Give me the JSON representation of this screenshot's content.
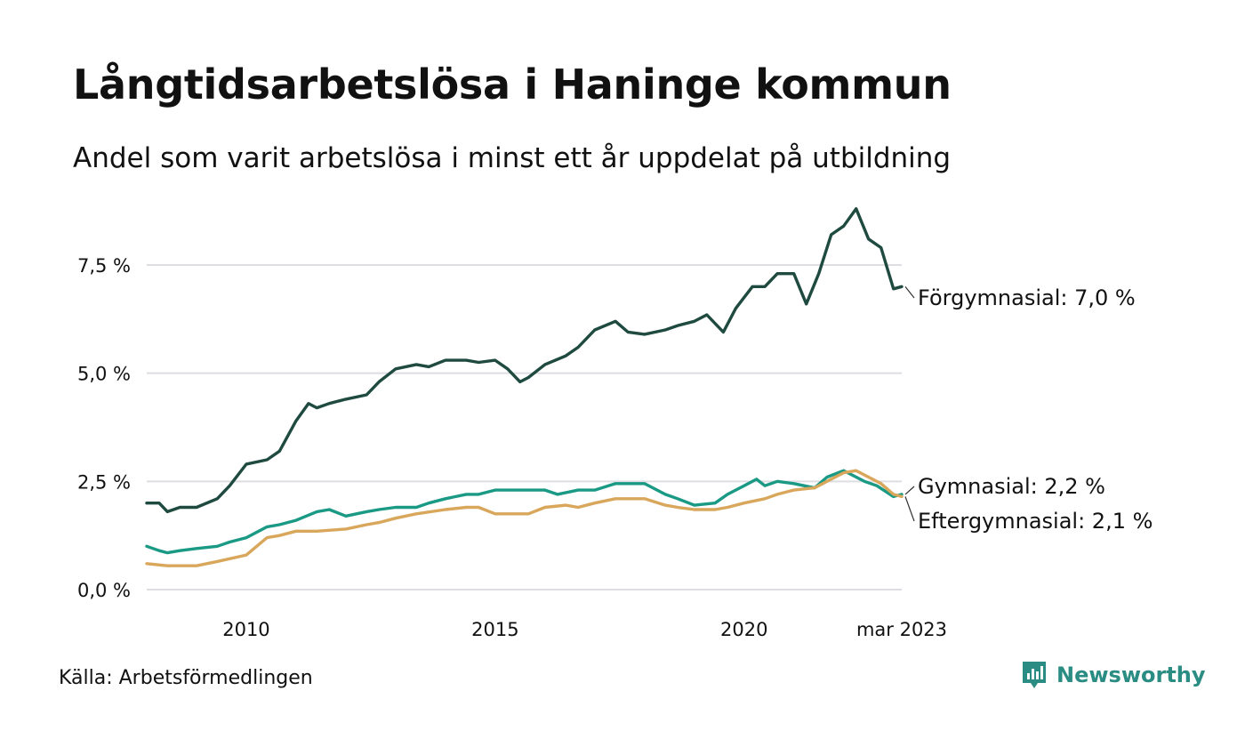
{
  "header": {
    "title": "Långtidsarbetslösa i Haninge kommun",
    "subtitle": "Andel som varit arbetslösa i minst ett år uppdelat på utbildning"
  },
  "footer": {
    "source": "Källa: Arbetsförmedlingen",
    "brand": "Newsworthy",
    "brand_icon": "bar-chart-logo-icon"
  },
  "colors": {
    "forgymnasial": "#1f4a40",
    "gymnasial": "#1a9985",
    "eftergymnasial": "#d9a75c",
    "grid": "#dddde2",
    "text": "#111111"
  },
  "chart_data": {
    "type": "line",
    "title": "Långtidsarbetslösa i Haninge kommun",
    "subtitle": "Andel som varit arbetslösa i minst ett år uppdelat på utbildning",
    "ylim": [
      0,
      9.0
    ],
    "yticks": [
      0,
      2.5,
      5.0,
      7.5
    ],
    "ytick_labels": [
      "0,0 %",
      "2,5 %",
      "5,0 %",
      "7,5 %"
    ],
    "xlim": [
      "2008-01",
      "2023-03"
    ],
    "xticks": [
      "2010-01",
      "2015-01",
      "2020-01",
      "2023-03"
    ],
    "xtick_labels": [
      "2010",
      "2015",
      "2020",
      "mar 2023"
    ],
    "grid": true,
    "legend": "direct labels at line ends",
    "end_labels": [
      "Förgymnasial: 7,0 %",
      "Gymnasial: 2,2 %",
      "Eftergymnasial: 2,1 %"
    ],
    "series": [
      {
        "name": "Förgymnasial",
        "color": "#1f4a40",
        "points": [
          [
            "2008-01",
            2.0
          ],
          [
            "2008-04",
            2.0
          ],
          [
            "2008-06",
            1.8
          ],
          [
            "2008-09",
            1.9
          ],
          [
            "2009-01",
            1.9
          ],
          [
            "2009-06",
            2.1
          ],
          [
            "2009-09",
            2.4
          ],
          [
            "2010-01",
            2.9
          ],
          [
            "2010-06",
            3.0
          ],
          [
            "2010-09",
            3.2
          ],
          [
            "2011-01",
            3.9
          ],
          [
            "2011-04",
            4.3
          ],
          [
            "2011-06",
            4.2
          ],
          [
            "2011-09",
            4.3
          ],
          [
            "2012-01",
            4.4
          ],
          [
            "2012-06",
            4.5
          ],
          [
            "2012-09",
            4.8
          ],
          [
            "2013-01",
            5.1
          ],
          [
            "2013-06",
            5.2
          ],
          [
            "2013-09",
            5.15
          ],
          [
            "2014-01",
            5.3
          ],
          [
            "2014-06",
            5.3
          ],
          [
            "2014-09",
            5.25
          ],
          [
            "2015-01",
            5.3
          ],
          [
            "2015-04",
            5.1
          ],
          [
            "2015-07",
            4.8
          ],
          [
            "2015-09",
            4.9
          ],
          [
            "2016-01",
            5.2
          ],
          [
            "2016-06",
            5.4
          ],
          [
            "2016-09",
            5.6
          ],
          [
            "2017-01",
            6.0
          ],
          [
            "2017-06",
            6.2
          ],
          [
            "2017-09",
            5.95
          ],
          [
            "2018-01",
            5.9
          ],
          [
            "2018-06",
            6.0
          ],
          [
            "2018-09",
            6.1
          ],
          [
            "2019-01",
            6.2
          ],
          [
            "2019-04",
            6.35
          ],
          [
            "2019-08",
            5.95
          ],
          [
            "2019-11",
            6.5
          ],
          [
            "2020-03",
            7.0
          ],
          [
            "2020-06",
            7.0
          ],
          [
            "2020-09",
            7.3
          ],
          [
            "2021-01",
            7.3
          ],
          [
            "2021-04",
            6.6
          ],
          [
            "2021-07",
            7.3
          ],
          [
            "2021-10",
            8.2
          ],
          [
            "2022-01",
            8.4
          ],
          [
            "2022-04",
            8.8
          ],
          [
            "2022-07",
            8.1
          ],
          [
            "2022-10",
            7.9
          ],
          [
            "2023-01",
            6.95
          ],
          [
            "2023-03",
            7.0
          ]
        ]
      },
      {
        "name": "Gymnasial",
        "color": "#1a9985",
        "points": [
          [
            "2008-01",
            1.0
          ],
          [
            "2008-04",
            0.9
          ],
          [
            "2008-06",
            0.85
          ],
          [
            "2008-09",
            0.9
          ],
          [
            "2009-01",
            0.95
          ],
          [
            "2009-06",
            1.0
          ],
          [
            "2009-09",
            1.1
          ],
          [
            "2010-01",
            1.2
          ],
          [
            "2010-06",
            1.45
          ],
          [
            "2010-09",
            1.5
          ],
          [
            "2011-01",
            1.6
          ],
          [
            "2011-06",
            1.8
          ],
          [
            "2011-09",
            1.85
          ],
          [
            "2012-01",
            1.7
          ],
          [
            "2012-06",
            1.8
          ],
          [
            "2012-09",
            1.85
          ],
          [
            "2013-01",
            1.9
          ],
          [
            "2013-06",
            1.9
          ],
          [
            "2013-09",
            2.0
          ],
          [
            "2014-01",
            2.1
          ],
          [
            "2014-06",
            2.2
          ],
          [
            "2014-09",
            2.2
          ],
          [
            "2015-01",
            2.3
          ],
          [
            "2015-06",
            2.3
          ],
          [
            "2015-09",
            2.3
          ],
          [
            "2016-01",
            2.3
          ],
          [
            "2016-04",
            2.2
          ],
          [
            "2016-09",
            2.3
          ],
          [
            "2017-01",
            2.3
          ],
          [
            "2017-06",
            2.45
          ],
          [
            "2017-09",
            2.45
          ],
          [
            "2018-01",
            2.45
          ],
          [
            "2018-06",
            2.2
          ],
          [
            "2018-09",
            2.1
          ],
          [
            "2019-01",
            1.95
          ],
          [
            "2019-06",
            2.0
          ],
          [
            "2019-09",
            2.2
          ],
          [
            "2020-01",
            2.4
          ],
          [
            "2020-04",
            2.55
          ],
          [
            "2020-06",
            2.4
          ],
          [
            "2020-09",
            2.5
          ],
          [
            "2021-01",
            2.45
          ],
          [
            "2021-06",
            2.35
          ],
          [
            "2021-09",
            2.6
          ],
          [
            "2022-01",
            2.75
          ],
          [
            "2022-06",
            2.5
          ],
          [
            "2022-09",
            2.4
          ],
          [
            "2023-01",
            2.15
          ],
          [
            "2023-03",
            2.2
          ]
        ]
      },
      {
        "name": "Eftergymnasial",
        "color": "#d9a75c",
        "points": [
          [
            "2008-01",
            0.6
          ],
          [
            "2008-06",
            0.55
          ],
          [
            "2009-01",
            0.55
          ],
          [
            "2009-06",
            0.65
          ],
          [
            "2010-01",
            0.8
          ],
          [
            "2010-06",
            1.2
          ],
          [
            "2010-09",
            1.25
          ],
          [
            "2011-01",
            1.35
          ],
          [
            "2011-06",
            1.35
          ],
          [
            "2012-01",
            1.4
          ],
          [
            "2012-06",
            1.5
          ],
          [
            "2012-09",
            1.55
          ],
          [
            "2013-01",
            1.65
          ],
          [
            "2013-06",
            1.75
          ],
          [
            "2014-01",
            1.85
          ],
          [
            "2014-06",
            1.9
          ],
          [
            "2014-09",
            1.9
          ],
          [
            "2015-01",
            1.75
          ],
          [
            "2015-06",
            1.75
          ],
          [
            "2015-09",
            1.75
          ],
          [
            "2016-01",
            1.9
          ],
          [
            "2016-06",
            1.95
          ],
          [
            "2016-09",
            1.9
          ],
          [
            "2017-01",
            2.0
          ],
          [
            "2017-06",
            2.1
          ],
          [
            "2017-09",
            2.1
          ],
          [
            "2018-01",
            2.1
          ],
          [
            "2018-06",
            1.95
          ],
          [
            "2018-09",
            1.9
          ],
          [
            "2019-01",
            1.85
          ],
          [
            "2019-06",
            1.85
          ],
          [
            "2019-09",
            1.9
          ],
          [
            "2020-01",
            2.0
          ],
          [
            "2020-06",
            2.1
          ],
          [
            "2020-09",
            2.2
          ],
          [
            "2021-01",
            2.3
          ],
          [
            "2021-06",
            2.35
          ],
          [
            "2021-09",
            2.5
          ],
          [
            "2022-01",
            2.7
          ],
          [
            "2022-04",
            2.75
          ],
          [
            "2022-07",
            2.6
          ],
          [
            "2022-10",
            2.45
          ],
          [
            "2023-01",
            2.2
          ],
          [
            "2023-03",
            2.15
          ]
        ]
      }
    ]
  }
}
